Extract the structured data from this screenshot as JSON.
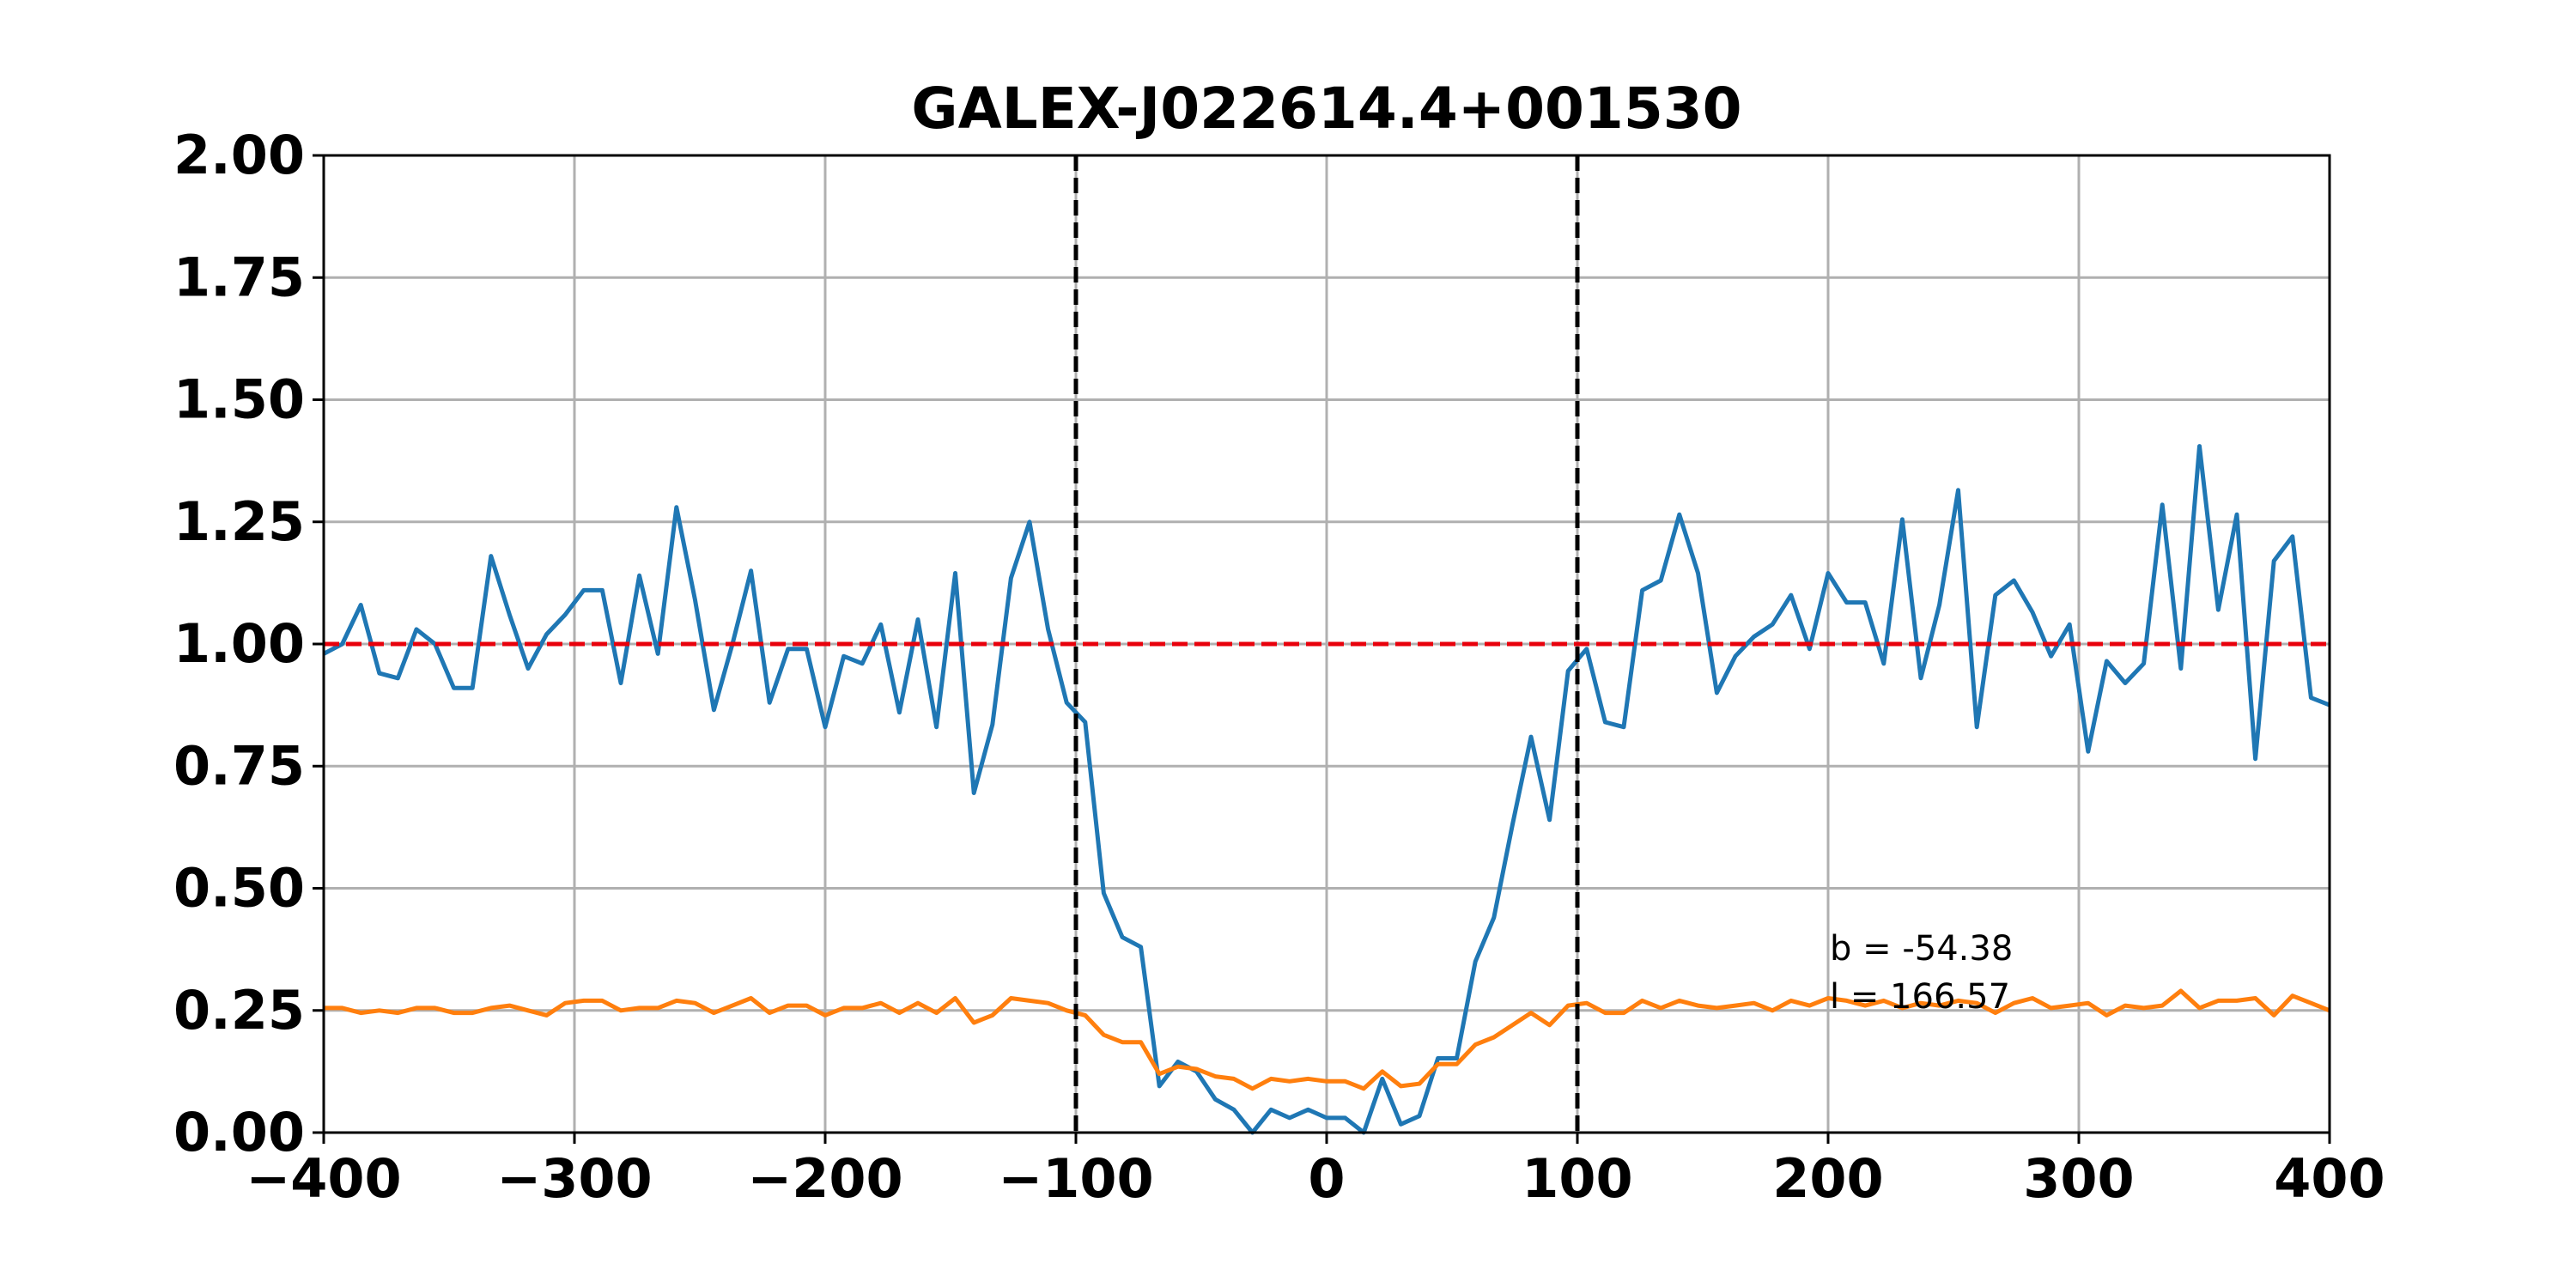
{
  "chart_data": {
    "type": "line",
    "title": "GALEX-J022614.4+001530",
    "x": [
      -400,
      -392.6,
      -385.2,
      -377.8,
      -370.4,
      -363.0,
      -355.6,
      -348.1,
      -340.7,
      -333.3,
      -325.9,
      -318.5,
      -311.1,
      -303.7,
      -296.3,
      -288.9,
      -281.5,
      -274.1,
      -266.7,
      -259.3,
      -251.9,
      -244.4,
      -237.0,
      -229.6,
      -222.2,
      -214.8,
      -207.4,
      -200.0,
      -192.6,
      -185.2,
      -177.8,
      -170.4,
      -163.0,
      -155.6,
      -148.1,
      -140.7,
      -133.3,
      -125.9,
      -118.5,
      -111.1,
      -103.7,
      -96.3,
      -88.9,
      -81.5,
      -74.1,
      -66.7,
      -59.3,
      -51.9,
      -44.4,
      -37.0,
      -29.6,
      -22.2,
      -14.8,
      -7.4,
      0,
      7.4,
      14.8,
      22.2,
      29.6,
      37.0,
      44.4,
      51.9,
      59.3,
      66.7,
      74.1,
      81.5,
      88.9,
      96.3,
      103.7,
      111.1,
      118.5,
      125.9,
      133.3,
      140.7,
      148.1,
      155.6,
      163.0,
      170.4,
      177.8,
      185.2,
      192.6,
      200.0,
      207.4,
      214.8,
      222.2,
      229.6,
      237.0,
      244.4,
      251.9,
      259.3,
      266.7,
      274.1,
      281.5,
      288.9,
      296.3,
      303.7,
      311.1,
      318.5,
      325.9,
      333.3,
      340.7,
      348.1,
      355.6,
      363.0,
      370.4,
      377.8,
      385.2,
      392.6,
      400
    ],
    "series": [
      {
        "color": "#1f77b4",
        "values": [
          0.98,
          1.0,
          1.08,
          0.94,
          0.93,
          1.03,
          1.0,
          0.91,
          0.91,
          1.18,
          1.06,
          0.95,
          1.02,
          1.06,
          1.11,
          1.11,
          0.92,
          1.14,
          0.98,
          1.28,
          1.09,
          0.865,
          1.0,
          1.15,
          0.88,
          0.99,
          0.99,
          0.83,
          0.975,
          0.96,
          1.04,
          0.86,
          1.05,
          0.83,
          1.145,
          0.695,
          0.835,
          1.135,
          1.25,
          1.03,
          0.88,
          0.84,
          0.49,
          0.4,
          0.38,
          0.095,
          0.145,
          0.125,
          0.068,
          0.047,
          0.0,
          0.047,
          0.03,
          0.047,
          0.03,
          0.03,
          0.0,
          0.11,
          0.017,
          0.034,
          0.152,
          0.152,
          0.35,
          0.44,
          0.63,
          0.81,
          0.64,
          0.945,
          0.99,
          0.84,
          0.83,
          1.11,
          1.13,
          1.265,
          1.145,
          0.9,
          0.975,
          1.015,
          1.04,
          1.1,
          0.99,
          1.145,
          1.085,
          1.085,
          0.96,
          1.255,
          0.93,
          1.08,
          1.315,
          0.83,
          1.1,
          1.13,
          1.065,
          0.975,
          1.04,
          0.78,
          0.965,
          0.92,
          0.96,
          1.285,
          0.95,
          1.405,
          1.07,
          1.265,
          0.765,
          1.17,
          1.22,
          0.89,
          0.875
        ]
      },
      {
        "color": "#ff7f0e",
        "values": [
          0.255,
          0.255,
          0.245,
          0.25,
          0.245,
          0.255,
          0.255,
          0.245,
          0.245,
          0.255,
          0.26,
          0.25,
          0.24,
          0.265,
          0.27,
          0.27,
          0.25,
          0.255,
          0.255,
          0.27,
          0.265,
          0.245,
          0.26,
          0.275,
          0.245,
          0.26,
          0.26,
          0.24,
          0.255,
          0.255,
          0.265,
          0.245,
          0.265,
          0.245,
          0.275,
          0.225,
          0.24,
          0.275,
          0.27,
          0.265,
          0.25,
          0.24,
          0.2,
          0.185,
          0.185,
          0.12,
          0.135,
          0.13,
          0.115,
          0.11,
          0.09,
          0.11,
          0.105,
          0.11,
          0.105,
          0.105,
          0.09,
          0.125,
          0.095,
          0.1,
          0.14,
          0.14,
          0.18,
          0.195,
          0.22,
          0.245,
          0.22,
          0.26,
          0.265,
          0.245,
          0.245,
          0.27,
          0.255,
          0.27,
          0.26,
          0.255,
          0.26,
          0.265,
          0.25,
          0.27,
          0.26,
          0.275,
          0.27,
          0.26,
          0.27,
          0.255,
          0.265,
          0.26,
          0.27,
          0.265,
          0.245,
          0.265,
          0.275,
          0.255,
          0.26,
          0.265,
          0.24,
          0.26,
          0.255,
          0.26,
          0.29,
          0.255,
          0.27,
          0.27,
          0.275,
          0.24,
          0.28,
          0.265,
          0.25
        ]
      }
    ],
    "hlines": [
      {
        "value": 1.0,
        "color": "#e8000b"
      }
    ],
    "vlines": [
      {
        "value": -100,
        "color": "#000000"
      },
      {
        "value": 100,
        "color": "#000000"
      }
    ],
    "annotations": [
      "b = -54.38",
      "l = 166.57"
    ],
    "xlim": [
      -400,
      400
    ],
    "ylim": [
      0,
      2
    ],
    "xticks": [
      {
        "value": -400,
        "label": "−400"
      },
      {
        "value": -300,
        "label": "−300"
      },
      {
        "value": -200,
        "label": "−200"
      },
      {
        "value": -100,
        "label": "−100"
      },
      0,
      100,
      200,
      300,
      400
    ],
    "yticks": [
      {
        "value": 0,
        "label": "0.00"
      },
      {
        "value": 0.25,
        "label": "0.25"
      },
      {
        "value": 0.5,
        "label": "0.50"
      },
      {
        "value": 0.75,
        "label": "0.75"
      },
      {
        "value": 1,
        "label": "1.00"
      },
      {
        "value": 1.25,
        "label": "1.25"
      },
      {
        "value": 1.5,
        "label": "1.50"
      },
      {
        "value": 1.75,
        "label": "1.75"
      },
      {
        "value": 2,
        "label": "2.00"
      }
    ],
    "grid": true
  }
}
